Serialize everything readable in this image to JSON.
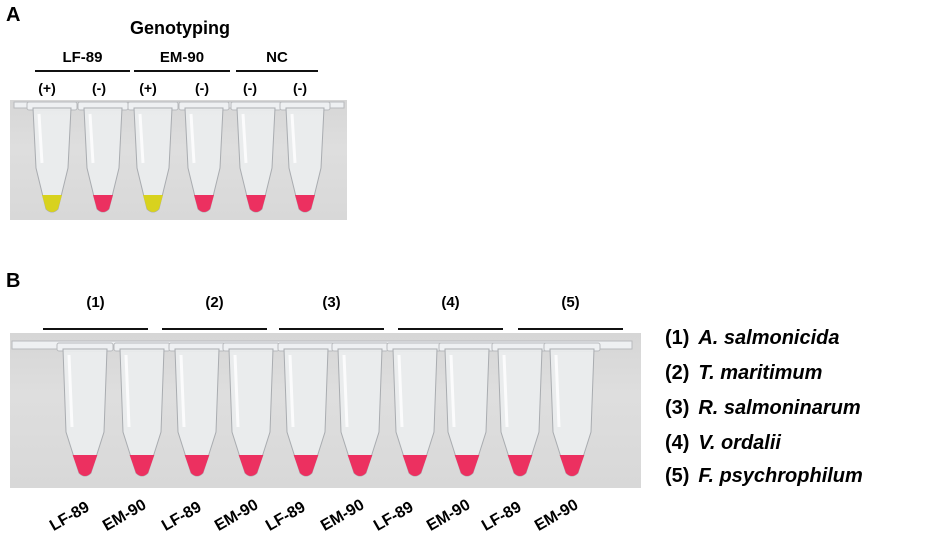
{
  "panel_a": {
    "label": "A",
    "title": "Genotyping",
    "groups": [
      {
        "name": "LF-89",
        "signs": [
          "(+)",
          "(-)"
        ]
      },
      {
        "name": "EM-90",
        "signs": [
          "(+)",
          "(-)"
        ]
      },
      {
        "name": "NC",
        "signs": [
          "(-)",
          "(-)"
        ]
      }
    ],
    "tube_colors": [
      "yellow",
      "pink",
      "yellow",
      "pink",
      "pink",
      "pink"
    ],
    "colors": {
      "yellow": "#d8d21e",
      "pink": "#ec3060"
    }
  },
  "panel_b": {
    "label": "B",
    "groups": [
      "(1)",
      "(2)",
      "(3)",
      "(4)",
      "(5)"
    ],
    "tube_labels": [
      "LF-89",
      "EM-90",
      "LF-89",
      "EM-90",
      "LF-89",
      "EM-90",
      "LF-89",
      "EM-90",
      "LF-89",
      "EM-90"
    ],
    "tube_colors": [
      "pink",
      "pink",
      "pink",
      "pink",
      "pink",
      "pink",
      "pink",
      "pink",
      "pink",
      "pink"
    ]
  },
  "legend": [
    {
      "num": "(1)",
      "name": "A. salmonicida"
    },
    {
      "num": "(2)",
      "name": "T. maritimum"
    },
    {
      "num": "(3)",
      "name": "R. salmoninarum"
    },
    {
      "num": "(4)",
      "name": "V. ordalii"
    },
    {
      "num": "(5)",
      "name": "F. psychrophilum"
    }
  ]
}
